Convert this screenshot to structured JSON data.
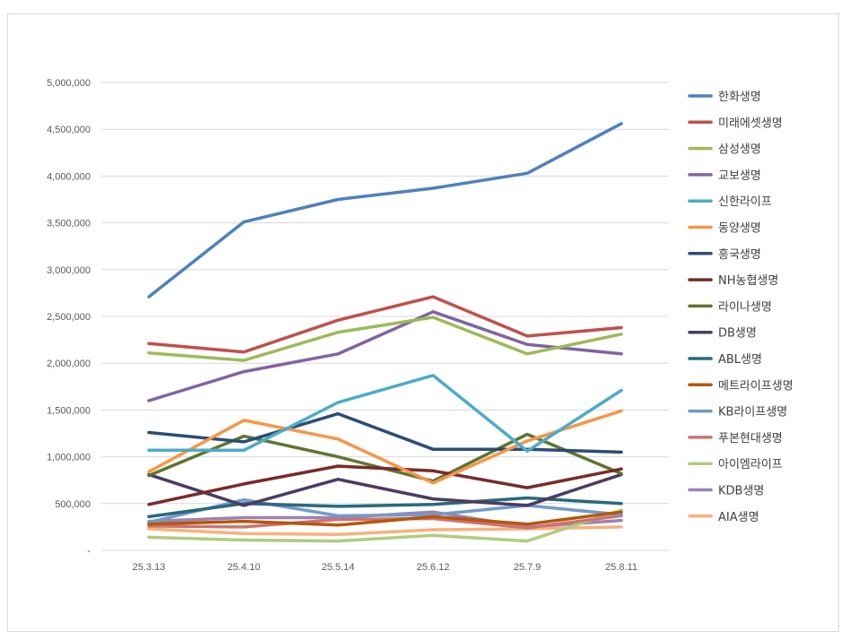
{
  "chart_data": {
    "type": "line",
    "title": "",
    "xlabel": "",
    "ylabel": "",
    "categories": [
      "25.3.13",
      "25.4.10",
      "25.5.14",
      "25.6.12",
      "25.7.9",
      "25.8.11"
    ],
    "ylim": [
      0,
      5000000
    ],
    "ytick_values": [
      0,
      500000,
      1000000,
      1500000,
      2000000,
      2500000,
      3000000,
      3500000,
      4000000,
      4500000,
      5000000
    ],
    "ytick_labels": [
      "-",
      "500,000",
      "1,000,000",
      "1,500,000",
      "2,000,000",
      "2,500,000",
      "3,000,000",
      "3,500,000",
      "4,000,000",
      "4,500,000",
      "5,000,000"
    ],
    "grid": true,
    "legend_position": "right",
    "series": [
      {
        "name": "한화생명",
        "color": "#4e81bd",
        "values": [
          2710000,
          3510000,
          3750000,
          3870000,
          4030000,
          4560000
        ]
      },
      {
        "name": "미래에셋생명",
        "color": "#c0504d",
        "values": [
          2210000,
          2120000,
          2460000,
          2710000,
          2290000,
          2380000
        ]
      },
      {
        "name": "삼성생명",
        "color": "#9bbb59",
        "values": [
          2110000,
          2030000,
          2330000,
          2490000,
          2100000,
          2310000
        ]
      },
      {
        "name": "교보생명",
        "color": "#8064a2",
        "values": [
          1600000,
          1910000,
          2100000,
          2550000,
          2200000,
          2100000
        ]
      },
      {
        "name": "신한라이프",
        "color": "#4bacc6",
        "values": [
          1070000,
          1070000,
          1580000,
          1870000,
          1060000,
          1710000
        ]
      },
      {
        "name": "동양생명",
        "color": "#f79646",
        "values": [
          840000,
          1390000,
          1190000,
          720000,
          1170000,
          1490000
        ]
      },
      {
        "name": "흥국생명",
        "color": "#2c4d75",
        "values": [
          1260000,
          1160000,
          1460000,
          1080000,
          1080000,
          1050000
        ]
      },
      {
        "name": "NH농협생명",
        "color": "#772c2a",
        "values": [
          490000,
          710000,
          900000,
          850000,
          670000,
          870000
        ]
      },
      {
        "name": "라이나생명",
        "color": "#5f7530",
        "values": [
          800000,
          1220000,
          1000000,
          740000,
          1240000,
          820000
        ]
      },
      {
        "name": "DB생명",
        "color": "#4d3b62",
        "values": [
          810000,
          480000,
          760000,
          550000,
          480000,
          810000
        ]
      },
      {
        "name": "ABL생명",
        "color": "#276a7c",
        "values": [
          360000,
          500000,
          470000,
          490000,
          560000,
          500000
        ]
      },
      {
        "name": "메트라이프생명",
        "color": "#b65708",
        "values": [
          280000,
          310000,
          270000,
          360000,
          280000,
          410000
        ]
      },
      {
        "name": "KB라이프생명",
        "color": "#729aca",
        "values": [
          300000,
          540000,
          370000,
          380000,
          480000,
          380000
        ]
      },
      {
        "name": "푸본현대생명",
        "color": "#cd7371",
        "values": [
          260000,
          250000,
          330000,
          340000,
          240000,
          370000
        ]
      },
      {
        "name": "아이엠라이프",
        "color": "#b0cc7f",
        "values": [
          140000,
          110000,
          100000,
          160000,
          100000,
          430000
        ]
      },
      {
        "name": "KDB생명",
        "color": "#9983b5",
        "values": [
          310000,
          350000,
          350000,
          410000,
          250000,
          320000
        ]
      },
      {
        "name": "AIA생명",
        "color": "#f9b17b",
        "values": [
          230000,
          180000,
          170000,
          220000,
          230000,
          250000
        ]
      }
    ]
  }
}
